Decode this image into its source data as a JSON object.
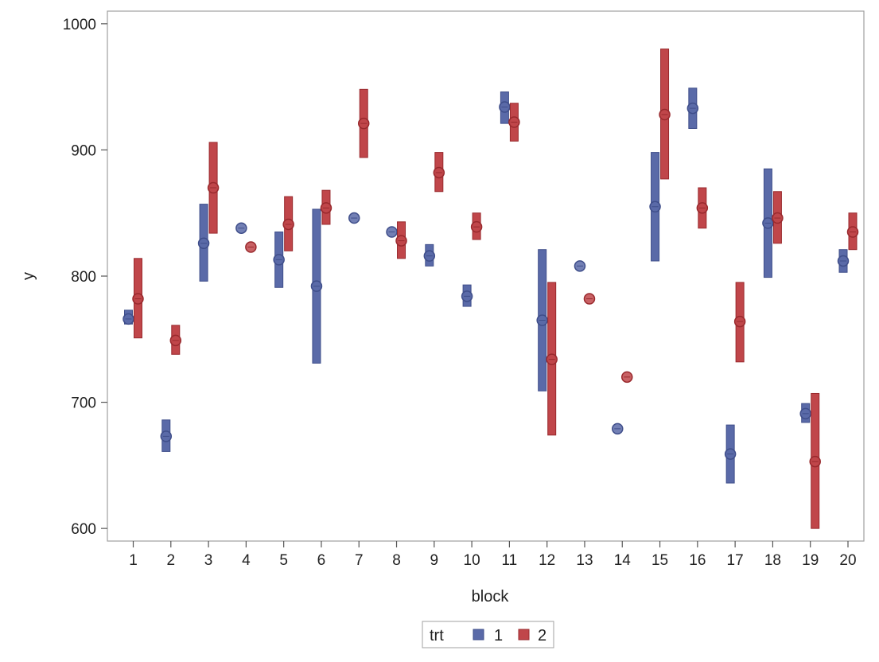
{
  "chart_data": {
    "type": "scatter",
    "title": "",
    "xlabel": "block",
    "ylabel": "y",
    "ylim": [
      590,
      1010
    ],
    "yticks": [
      600,
      700,
      800,
      900,
      1000
    ],
    "categories": [
      "1",
      "2",
      "3",
      "4",
      "5",
      "6",
      "7",
      "8",
      "9",
      "10",
      "11",
      "12",
      "13",
      "14",
      "15",
      "16",
      "17",
      "18",
      "19",
      "20"
    ],
    "grid": false,
    "legend": {
      "title": "trt",
      "placement": "bottom-center",
      "entries": [
        "1",
        "2"
      ]
    },
    "series": [
      {
        "name": "1",
        "color": "#5a6aa8",
        "mean": [
          766,
          673,
          826,
          838,
          813,
          792,
          846,
          835,
          816,
          784,
          934,
          765,
          808,
          679,
          855,
          933,
          659,
          842,
          691,
          812
        ],
        "lower": [
          762,
          661,
          796,
          838,
          791,
          731,
          846,
          835,
          808,
          776,
          921,
          709,
          808,
          679,
          812,
          917,
          636,
          799,
          684,
          803
        ],
        "upper": [
          773,
          686,
          857,
          838,
          835,
          853,
          846,
          835,
          825,
          793,
          946,
          821,
          808,
          679,
          898,
          949,
          682,
          885,
          699,
          821
        ]
      },
      {
        "name": "2",
        "color": "#c0464a",
        "mean": [
          782,
          749,
          870,
          823,
          841,
          854,
          921,
          828,
          882,
          839,
          922,
          734,
          782,
          720,
          928,
          854,
          764,
          846,
          653,
          835
        ],
        "lower": [
          751,
          738,
          834,
          823,
          820,
          841,
          894,
          814,
          867,
          829,
          907,
          674,
          782,
          720,
          877,
          838,
          732,
          826,
          600,
          821
        ],
        "upper": [
          814,
          761,
          906,
          823,
          863,
          868,
          948,
          843,
          898,
          850,
          937,
          795,
          782,
          720,
          980,
          870,
          795,
          867,
          707,
          850
        ]
      }
    ]
  }
}
